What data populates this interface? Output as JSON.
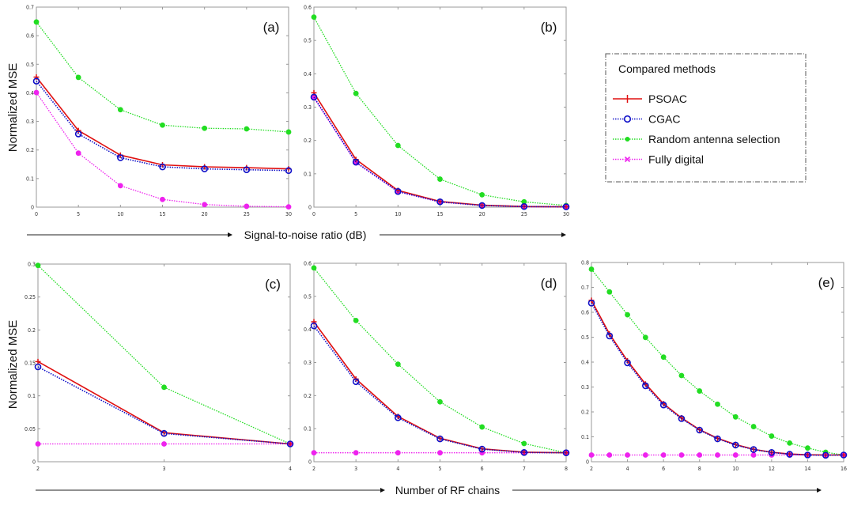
{
  "colors": {
    "PSOAC": "#e01010",
    "CGAC": "#1010c8",
    "Random antenna selection": "#22dd22",
    "Fully digital": "#ee22ee",
    "axis": "#999999",
    "text": "#111111"
  },
  "legend": {
    "title": "Compared methods",
    "entries": [
      {
        "name": "PSOAC",
        "marker": "plus",
        "line": "solid"
      },
      {
        "name": "CGAC",
        "marker": "circle",
        "line": "dotted"
      },
      {
        "name": "Random antenna selection",
        "marker": "star",
        "line": "dotted"
      },
      {
        "name": "Fully digital",
        "marker": "x",
        "line": "dotted"
      }
    ]
  },
  "shared_labels": {
    "ylabel": "Normalized MSE",
    "top_xlabel": "Signal-to-noise ratio (dB)",
    "bottom_xlabel": "Number of RF chains"
  },
  "chart_data": [
    {
      "type": "line",
      "panel": "(a)",
      "xlabel": "Signal-to-noise ratio (dB)",
      "ylabel": "Normalized MSE",
      "xlim": [
        0,
        30
      ],
      "ylim": [
        0,
        0.7
      ],
      "xticks": [
        0,
        5,
        10,
        15,
        20,
        25,
        30
      ],
      "yticks": [
        0,
        0.1,
        0.2,
        0.3,
        0.4,
        0.5,
        0.6,
        0.7
      ],
      "x": [
        0,
        5,
        10,
        15,
        20,
        25,
        30
      ],
      "series": [
        {
          "name": "PSOAC",
          "values": [
            0.455,
            0.268,
            0.182,
            0.148,
            0.141,
            0.138,
            0.134
          ]
        },
        {
          "name": "CGAC",
          "values": [
            0.441,
            0.256,
            0.173,
            0.141,
            0.134,
            0.131,
            0.128
          ]
        },
        {
          "name": "Random antenna selection",
          "values": [
            0.648,
            0.454,
            0.341,
            0.287,
            0.276,
            0.274,
            0.263
          ]
        },
        {
          "name": "Fully digital",
          "values": [
            0.401,
            0.189,
            0.075,
            0.027,
            0.009,
            0.003,
            0.001
          ]
        }
      ]
    },
    {
      "type": "line",
      "panel": "(b)",
      "xlabel": "Signal-to-noise ratio (dB)",
      "ylabel": "",
      "xlim": [
        0,
        30
      ],
      "ylim": [
        0,
        0.6
      ],
      "xticks": [
        0,
        5,
        10,
        15,
        20,
        25,
        30
      ],
      "yticks": [
        0,
        0.1,
        0.2,
        0.3,
        0.4,
        0.5,
        0.6
      ],
      "x": [
        0,
        5,
        10,
        15,
        20,
        25,
        30
      ],
      "series": [
        {
          "name": "PSOAC",
          "values": [
            0.343,
            0.143,
            0.05,
            0.017,
            0.006,
            0.002,
            0.001
          ]
        },
        {
          "name": "CGAC",
          "values": [
            0.33,
            0.135,
            0.047,
            0.016,
            0.005,
            0.002,
            0.001
          ]
        },
        {
          "name": "Random antenna selection",
          "values": [
            0.57,
            0.341,
            0.185,
            0.084,
            0.037,
            0.016,
            0.005
          ]
        },
        {
          "name": "Fully digital",
          "values": [
            0.328,
            0.133,
            0.046,
            0.015,
            0.005,
            0.001,
            0.0
          ]
        }
      ]
    },
    {
      "type": "line",
      "panel": "(c)",
      "xlabel": "Number of RF chains",
      "ylabel": "Normalized MSE",
      "xlim": [
        2,
        4
      ],
      "ylim": [
        0,
        0.3
      ],
      "xticks": [
        2,
        3,
        4
      ],
      "yticks": [
        0,
        0.05,
        0.1,
        0.15,
        0.2,
        0.25,
        0.3
      ],
      "x": [
        2,
        3,
        4
      ],
      "series": [
        {
          "name": "PSOAC",
          "values": [
            0.152,
            0.044,
            0.027
          ]
        },
        {
          "name": "CGAC",
          "values": [
            0.144,
            0.043,
            0.027
          ]
        },
        {
          "name": "Random antenna selection",
          "values": [
            0.298,
            0.113,
            0.027
          ]
        },
        {
          "name": "Fully digital",
          "values": [
            0.027,
            0.027,
            0.027
          ]
        }
      ]
    },
    {
      "type": "line",
      "panel": "(d)",
      "xlabel": "Number of RF chains",
      "ylabel": "",
      "xlim": [
        2,
        8
      ],
      "ylim": [
        0,
        0.6
      ],
      "xticks": [
        2,
        3,
        4,
        5,
        6,
        7,
        8
      ],
      "yticks": [
        0,
        0.1,
        0.2,
        0.3,
        0.4,
        0.5,
        0.6
      ],
      "x": [
        2,
        3,
        4,
        5,
        6,
        7,
        8
      ],
      "series": [
        {
          "name": "PSOAC",
          "values": [
            0.423,
            0.25,
            0.137,
            0.071,
            0.039,
            0.029,
            0.027
          ]
        },
        {
          "name": "CGAC",
          "values": [
            0.411,
            0.242,
            0.133,
            0.069,
            0.038,
            0.028,
            0.027
          ]
        },
        {
          "name": "Random antenna selection",
          "values": [
            0.586,
            0.427,
            0.295,
            0.181,
            0.105,
            0.055,
            0.027
          ]
        },
        {
          "name": "Fully digital",
          "values": [
            0.027,
            0.027,
            0.027,
            0.027,
            0.027,
            0.027,
            0.027
          ]
        }
      ]
    },
    {
      "type": "line",
      "panel": "(e)",
      "xlabel": "Number of RF chains",
      "ylabel": "",
      "xlim": [
        2,
        16
      ],
      "ylim": [
        0,
        0.8
      ],
      "xticks": [
        2,
        4,
        6,
        8,
        10,
        12,
        14,
        16
      ],
      "yticks": [
        0,
        0.1,
        0.2,
        0.3,
        0.4,
        0.5,
        0.6,
        0.7,
        0.8
      ],
      "x": [
        2,
        3,
        4,
        5,
        6,
        7,
        8,
        9,
        10,
        11,
        12,
        13,
        14,
        15,
        16
      ],
      "series": [
        {
          "name": "PSOAC",
          "values": [
            0.648,
            0.513,
            0.405,
            0.312,
            0.233,
            0.176,
            0.129,
            0.094,
            0.069,
            0.05,
            0.038,
            0.031,
            0.028,
            0.027,
            0.027
          ]
        },
        {
          "name": "CGAC",
          "values": [
            0.637,
            0.505,
            0.397,
            0.305,
            0.228,
            0.173,
            0.127,
            0.092,
            0.067,
            0.049,
            0.037,
            0.03,
            0.027,
            0.026,
            0.027
          ]
        },
        {
          "name": "Random antenna selection",
          "values": [
            0.773,
            0.682,
            0.59,
            0.499,
            0.42,
            0.346,
            0.284,
            0.231,
            0.18,
            0.141,
            0.103,
            0.075,
            0.055,
            0.038,
            0.027
          ]
        },
        {
          "name": "Fully digital",
          "values": [
            0.027,
            0.027,
            0.027,
            0.027,
            0.027,
            0.027,
            0.027,
            0.027,
            0.027,
            0.027,
            0.027,
            0.027,
            0.027,
            0.027,
            0.027
          ]
        }
      ]
    }
  ]
}
